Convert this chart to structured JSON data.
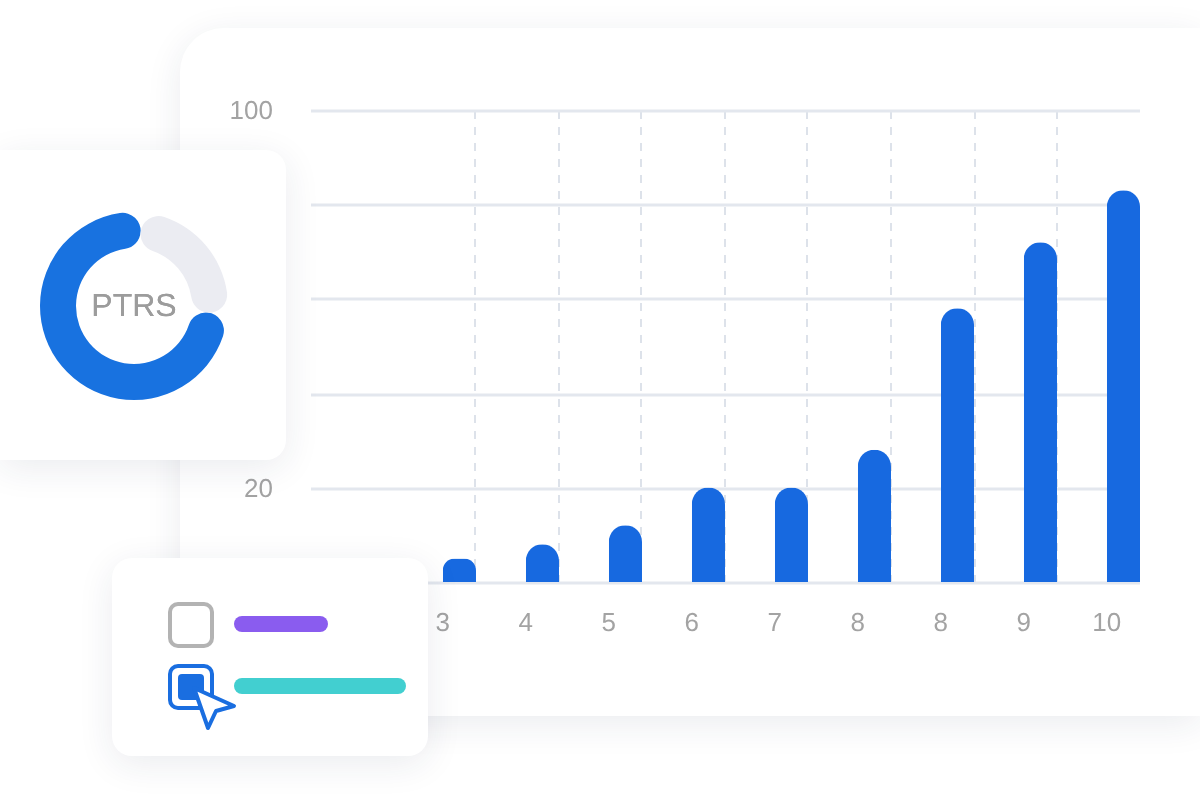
{
  "chart_data": [
    {
      "type": "bar",
      "categories": [
        "3",
        "4",
        "5",
        "6",
        "7",
        "8",
        "8",
        "9",
        "10"
      ],
      "values": [
        5,
        8,
        12,
        20,
        20,
        28,
        58,
        72,
        83
      ],
      "color": "#1769e0",
      "ylim": [
        0,
        100
      ],
      "yticks": [
        {
          "value": 0,
          "label": null
        },
        20,
        {
          "value": 40,
          "label": null
        },
        {
          "value": 60,
          "label": null
        },
        {
          "value": 80,
          "label": null
        },
        100
      ],
      "grid": true
    },
    {
      "type": "donut",
      "title": "PTRS",
      "categories": [
        null,
        null
      ],
      "values": [
        75,
        25
      ],
      "colors": [
        "#1872e0",
        "#ebecf2"
      ]
    }
  ]
}
